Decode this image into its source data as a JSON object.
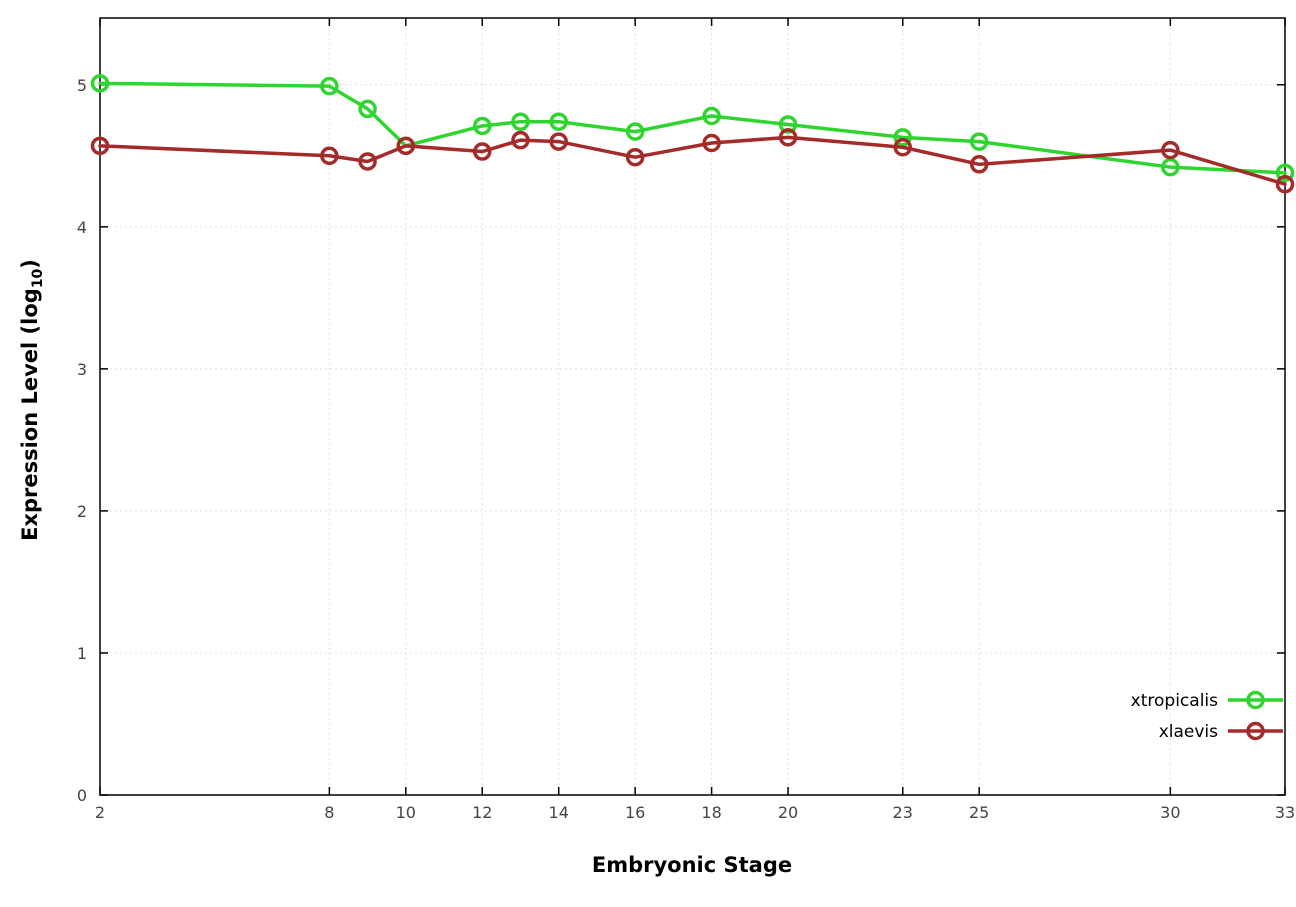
{
  "chart_data": {
    "type": "line",
    "title": "",
    "xlabel": "Embryonic Stage",
    "ylabel": "Expression Level (log10)",
    "x": [
      2,
      8,
      9,
      10,
      12,
      13,
      14,
      16,
      18,
      20,
      23,
      25,
      30,
      33
    ],
    "series": [
      {
        "name": "xtropicalis",
        "color": "#2ed52e",
        "values": [
          5.01,
          4.99,
          4.83,
          4.57,
          4.71,
          4.74,
          4.74,
          4.67,
          4.78,
          4.72,
          4.63,
          4.6,
          4.42,
          4.38
        ]
      },
      {
        "name": "xlaevis",
        "color": "#a52a2a",
        "values": [
          4.57,
          4.5,
          4.46,
          4.57,
          4.53,
          4.61,
          4.6,
          4.49,
          4.59,
          4.63,
          4.56,
          4.44,
          4.54,
          4.3
        ]
      }
    ],
    "xlim": [
      2,
      33
    ],
    "ylim": [
      0,
      5.47
    ],
    "x_ticks": [
      2,
      8,
      10,
      12,
      14,
      16,
      18,
      20,
      23,
      25,
      30,
      33
    ],
    "y_ticks": [
      0,
      1,
      2,
      3,
      4,
      5
    ],
    "grid": true,
    "legend_position": "bottom-right",
    "marker": "open-circle"
  },
  "labels": {
    "x": "Embryonic Stage",
    "y_main": "Expression Level (log",
    "y_sub": "10",
    "y_end": ")"
  },
  "style": {
    "grid_color": "#e0e0e0",
    "border_color": "#000000",
    "tick_label_color": "#444444",
    "legend_text_color": "#000000"
  }
}
